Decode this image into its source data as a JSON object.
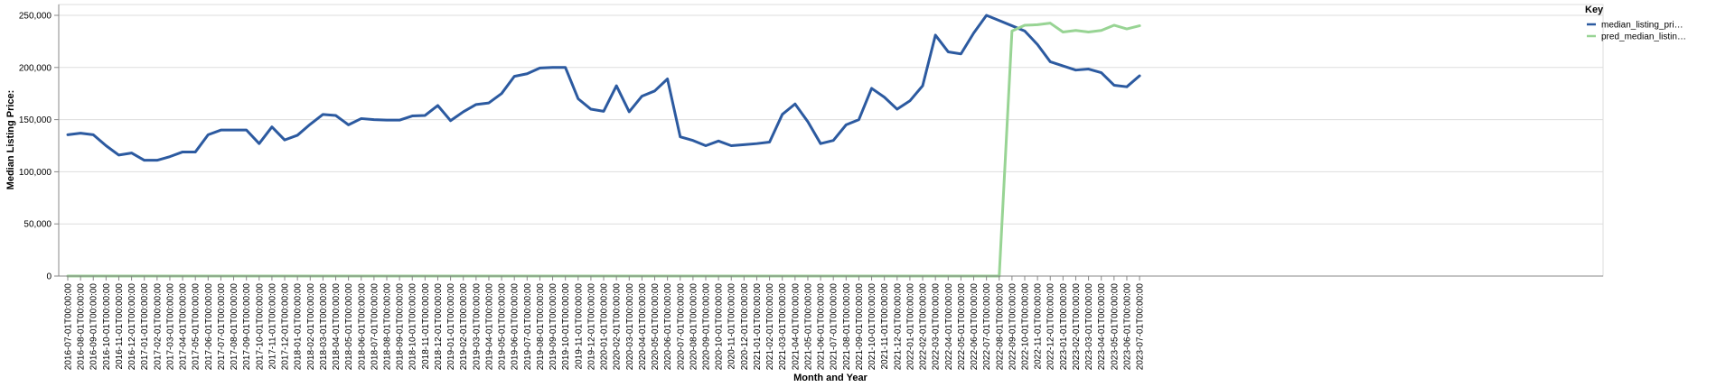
{
  "chart_data": {
    "type": "line",
    "xlabel": "Month and Year",
    "ylabel": "Median Listing Price:",
    "ylim": [
      0,
      250000
    ],
    "yticks": [
      0,
      50000,
      100000,
      150000,
      200000,
      250000
    ],
    "ytick_labels": [
      "0",
      "50,000",
      "100,000",
      "150,000",
      "200,000",
      "250,000"
    ],
    "grid": true,
    "legend": {
      "title": "Key",
      "placement": "top-right"
    },
    "x": [
      "2016-07-01T00:00:00",
      "2016-08-01T00:00:00",
      "2016-09-01T00:00:00",
      "2016-10-01T00:00:00",
      "2016-11-01T00:00:00",
      "2016-12-01T00:00:00",
      "2017-01-01T00:00:00",
      "2017-02-01T00:00:00",
      "2017-03-01T00:00:00",
      "2017-04-01T00:00:00",
      "2017-05-01T00:00:00",
      "2017-06-01T00:00:00",
      "2017-07-01T00:00:00",
      "2017-08-01T00:00:00",
      "2017-09-01T00:00:00",
      "2017-10-01T00:00:00",
      "2017-11-01T00:00:00",
      "2017-12-01T00:00:00",
      "2018-01-01T00:00:00",
      "2018-02-01T00:00:00",
      "2018-03-01T00:00:00",
      "2018-04-01T00:00:00",
      "2018-05-01T00:00:00",
      "2018-06-01T00:00:00",
      "2018-07-01T00:00:00",
      "2018-08-01T00:00:00",
      "2018-09-01T00:00:00",
      "2018-10-01T00:00:00",
      "2018-11-01T00:00:00",
      "2018-12-01T00:00:00",
      "2019-01-01T00:00:00",
      "2019-02-01T00:00:00",
      "2019-03-01T00:00:00",
      "2019-04-01T00:00:00",
      "2019-05-01T00:00:00",
      "2019-06-01T00:00:00",
      "2019-07-01T00:00:00",
      "2019-08-01T00:00:00",
      "2019-09-01T00:00:00",
      "2019-10-01T00:00:00",
      "2019-11-01T00:00:00",
      "2019-12-01T00:00:00",
      "2020-01-01T00:00:00",
      "2020-02-01T00:00:00",
      "2020-03-01T00:00:00",
      "2020-04-01T00:00:00",
      "2020-05-01T00:00:00",
      "2020-06-01T00:00:00",
      "2020-07-01T00:00:00",
      "2020-08-01T00:00:00",
      "2020-09-01T00:00:00",
      "2020-10-01T00:00:00",
      "2020-11-01T00:00:00",
      "2020-12-01T00:00:00",
      "2021-01-01T00:00:00",
      "2021-02-01T00:00:00",
      "2021-03-01T00:00:00",
      "2021-04-01T00:00:00",
      "2021-05-01T00:00:00",
      "2021-06-01T00:00:00",
      "2021-07-01T00:00:00",
      "2021-08-01T00:00:00",
      "2021-09-01T00:00:00",
      "2021-10-01T00:00:00",
      "2021-11-01T00:00:00",
      "2021-12-01T00:00:00",
      "2022-01-01T00:00:00",
      "2022-02-01T00:00:00",
      "2022-03-01T00:00:00",
      "2022-04-01T00:00:00",
      "2022-05-01T00:00:00",
      "2022-06-01T00:00:00",
      "2022-07-01T00:00:00",
      "2022-08-01T00:00:00",
      "2022-09-01T00:00:00",
      "2022-10-01T00:00:00",
      "2022-11-01T00:00:00",
      "2022-12-01T00:00:00",
      "2023-01-01T00:00:00",
      "2023-02-01T00:00:00",
      "2023-03-01T00:00:00",
      "2023-04-01T00:00:00",
      "2023-05-01T00:00:00",
      "2023-06-01T00:00:00",
      "2023-07-01T00:00:00"
    ],
    "series": [
      {
        "name": "median_listing_pri…",
        "color": "#2c5aa0",
        "values": [
          135500,
          137000,
          135500,
          125000,
          116000,
          118000,
          111000,
          111000,
          114500,
          119000,
          119000,
          135500,
          140000,
          140000,
          140000,
          127000,
          143000,
          130500,
          135000,
          145500,
          155000,
          154000,
          145000,
          151000,
          150000,
          149500,
          149500,
          153500,
          154000,
          163500,
          149000,
          157500,
          164500,
          166000,
          175000,
          191500,
          194000,
          199500,
          200000,
          200000,
          170000,
          160000,
          158000,
          182500,
          157500,
          172500,
          177500,
          189000,
          133500,
          130000,
          125000,
          129500,
          125000,
          126000,
          127000,
          128500,
          155000,
          165000,
          148000,
          127000,
          130000,
          145000,
          150000,
          180000,
          171500,
          160000,
          168000,
          182500,
          231000,
          215000,
          213000,
          233000,
          250000,
          245000,
          240000,
          235000,
          222000,
          205500,
          201500,
          197500,
          198500,
          195000,
          183000,
          181500,
          192000
        ]
      },
      {
        "name": "pred_median_listin…",
        "color": "#98d494",
        "values": [
          0,
          0,
          0,
          0,
          0,
          0,
          0,
          0,
          0,
          0,
          0,
          0,
          0,
          0,
          0,
          0,
          0,
          0,
          0,
          0,
          0,
          0,
          0,
          0,
          0,
          0,
          0,
          0,
          0,
          0,
          0,
          0,
          0,
          0,
          0,
          0,
          0,
          0,
          0,
          0,
          0,
          0,
          0,
          0,
          0,
          0,
          0,
          0,
          0,
          0,
          0,
          0,
          0,
          0,
          0,
          0,
          0,
          0,
          0,
          0,
          0,
          0,
          0,
          0,
          0,
          0,
          0,
          0,
          0,
          0,
          0,
          0,
          0,
          0,
          235000,
          240500,
          241000,
          242500,
          234000,
          235500,
          234000,
          235500,
          240500,
          237000,
          240000
        ]
      }
    ]
  }
}
